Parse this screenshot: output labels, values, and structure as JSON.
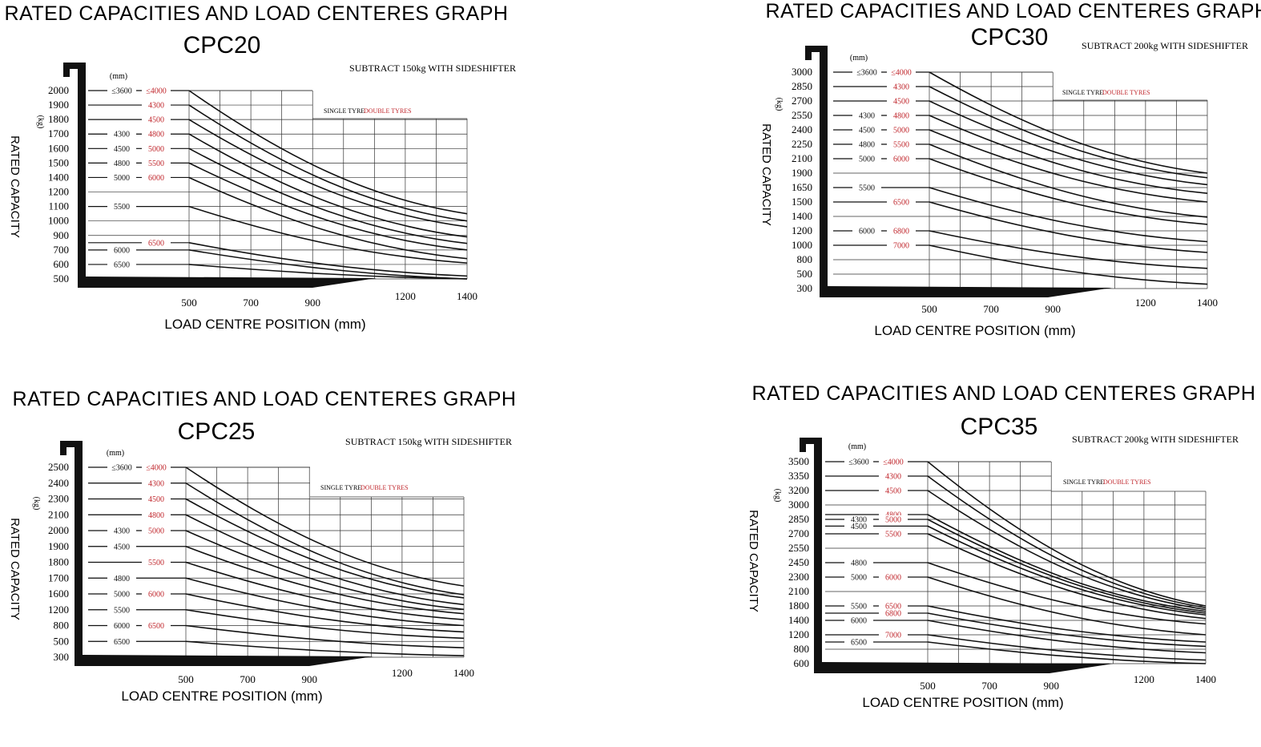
{
  "chart_data": [
    {
      "type": "line",
      "title": "RATED CAPACITIES AND LOAD CENTERES GRAPH",
      "model": "CPC20",
      "note": "SUBTRACT 150kg WITH SIDESHIFTER",
      "legend": {
        "single": "SINGLE TYRE",
        "double": "DOUBLE TYRES"
      },
      "xlabel": "LOAD CENTRE POSITION (mm)",
      "ylabel": "RATED CAPACITY",
      "yunit": "(kg)",
      "mast_unit": "(mm)",
      "xticks": [
        500,
        700,
        900,
        1200,
        1400
      ],
      "xlim": [
        500,
        1400
      ],
      "yticks": [
        2000,
        1900,
        1800,
        1700,
        1600,
        1500,
        1400,
        1200,
        1100,
        1000,
        900,
        700,
        600,
        500
      ],
      "series": [
        {
          "single": "≤3600",
          "double": "≤4000",
          "start": 2000,
          "end": 1050
        },
        {
          "single": "",
          "double": "4300",
          "start": 1900,
          "end": 1000
        },
        {
          "single": "",
          "double": "4500",
          "start": 1800,
          "end": 960
        },
        {
          "single": "4300",
          "double": "4800",
          "start": 1700,
          "end": 880
        },
        {
          "single": "4500",
          "double": "5000",
          "start": 1600,
          "end": 790
        },
        {
          "single": "4800",
          "double": "5500",
          "start": 1500,
          "end": 700
        },
        {
          "single": "5000",
          "double": "6000",
          "start": 1400,
          "end": 640
        },
        {
          "single": "5500",
          "double": "",
          "start": 1100,
          "end": 610
        },
        {
          "single": "",
          "double": "6500",
          "start": 800,
          "end": 520
        },
        {
          "single": "6000",
          "double": "",
          "start": 700,
          "end": 500
        },
        {
          "single": "6500",
          "double": "",
          "start": 600,
          "end": 500
        }
      ]
    },
    {
      "type": "line",
      "title": "RATED CAPACITIES AND LOAD CENTERES GRAPH",
      "model": "CPC30",
      "note": "SUBTRACT 200kg WITH SIDESHIFTER",
      "legend": {
        "single": "SINGLE TYRE",
        "double": "DOUBLE TYRES"
      },
      "xlabel": "LOAD CENTRE POSITION (mm)",
      "ylabel": "RATED CAPACITY",
      "yunit": "(kg)",
      "mast_unit": "(mm)",
      "xticks": [
        500,
        700,
        900,
        1200,
        1400
      ],
      "xlim": [
        500,
        1400
      ],
      "yticks": [
        3000,
        2850,
        2700,
        2550,
        2400,
        2250,
        2100,
        1900,
        1650,
        1500,
        1400,
        1200,
        1000,
        800,
        500,
        300
      ],
      "series": [
        {
          "single": "≤3600",
          "double": "≤4000",
          "start": 3000,
          "end": 1900
        },
        {
          "single": "",
          "double": "4300",
          "start": 2850,
          "end": 1820
        },
        {
          "single": "",
          "double": "4500",
          "start": 2700,
          "end": 1700
        },
        {
          "single": "4300",
          "double": "4800",
          "start": 2550,
          "end": 1590
        },
        {
          "single": "4500",
          "double": "5000",
          "start": 2400,
          "end": 1500
        },
        {
          "single": "4800",
          "double": "5500",
          "start": 2250,
          "end": 1390
        },
        {
          "single": "5000",
          "double": "6000",
          "start": 2100,
          "end": 1290
        },
        {
          "single": "5500",
          "double": "",
          "start": 1650,
          "end": 1050
        },
        {
          "single": "",
          "double": "6500",
          "start": 1500,
          "end": 900
        },
        {
          "single": "6000",
          "double": "6800",
          "start": 1200,
          "end": 620
        },
        {
          "single": "",
          "double": "7000",
          "start": 1000,
          "end": 360
        }
      ]
    },
    {
      "type": "line",
      "title": "RATED CAPACITIES AND LOAD CENTERES GRAPH",
      "model": "CPC25",
      "note": "SUBTRACT 150kg WITH SIDESHIFTER",
      "legend": {
        "single": "SINGLE TYRE",
        "double": "DOUBLE TYRES"
      },
      "xlabel": "LOAD CENTRE POSITION (mm)",
      "ylabel": "RATED CAPACITY",
      "yunit": "(kg)",
      "mast_unit": "(mm)",
      "xticks": [
        500,
        700,
        900,
        1200,
        1400
      ],
      "xlim": [
        500,
        1400
      ],
      "yticks": [
        2500,
        2400,
        2300,
        2100,
        2000,
        1900,
        1800,
        1700,
        1600,
        1200,
        800,
        500,
        300
      ],
      "series": [
        {
          "single": "≤3600",
          "double": "≤4000",
          "start": 2500,
          "end": 1650
        },
        {
          "single": "",
          "double": "4300",
          "start": 2400,
          "end": 1580
        },
        {
          "single": "",
          "double": "4500",
          "start": 2300,
          "end": 1500
        },
        {
          "single": "",
          "double": "4800",
          "start": 2100,
          "end": 1330
        },
        {
          "single": "4300",
          "double": "5000",
          "start": 2000,
          "end": 1210
        },
        {
          "single": "4500",
          "double": "",
          "start": 1900,
          "end": 1100
        },
        {
          "single": "",
          "double": "5500",
          "start": 1800,
          "end": 950
        },
        {
          "single": "4800",
          "double": "",
          "start": 1700,
          "end": 800
        },
        {
          "single": "5000",
          "double": "6000",
          "start": 1600,
          "end": 680
        },
        {
          "single": "5500",
          "double": "",
          "start": 1200,
          "end": 560
        },
        {
          "single": "6000",
          "double": "6500",
          "start": 800,
          "end": 420
        },
        {
          "single": "6500",
          "double": "",
          "start": 500,
          "end": 320
        }
      ]
    },
    {
      "type": "line",
      "title": "RATED CAPACITIES AND LOAD CENTERES GRAPH",
      "model": "CPC35",
      "note": "SUBTRACT 200kg WITH SIDESHIFTER",
      "legend": {
        "single": "SINGLE TYRE",
        "double": "DOUBLE TYRES"
      },
      "xlabel": "LOAD CENTRE POSITION (mm)",
      "ylabel": "RATED CAPACITY",
      "yunit": "(kg)",
      "mast_unit": "(mm)",
      "xticks": [
        500,
        700,
        900,
        1200,
        1400
      ],
      "xlim": [
        500,
        1400
      ],
      "yticks": [
        3500,
        3350,
        3200,
        3000,
        2850,
        2700,
        2550,
        2450,
        2300,
        2100,
        1800,
        1400,
        1200,
        800,
        600
      ],
      "series": [
        {
          "single": "≤3600",
          "double": "≤4000",
          "start": 3500,
          "end": 1800
        },
        {
          "single": "",
          "double": "4300",
          "start": 3350,
          "end": 1750
        },
        {
          "single": "",
          "double": "4500",
          "start": 3200,
          "end": 1700
        },
        {
          "single": "",
          "double": "4800",
          "start": 2900,
          "end": 1650
        },
        {
          "single": "4300",
          "double": "5000",
          "start": 2850,
          "end": 1600
        },
        {
          "single": "4500",
          "double": "",
          "start": 2780,
          "end": 1550
        },
        {
          "single": "",
          "double": "5500",
          "start": 2700,
          "end": 1450
        },
        {
          "single": "4800",
          "double": "",
          "start": 2450,
          "end": 1350
        },
        {
          "single": "5000",
          "double": "6000",
          "start": 2300,
          "end": 1200
        },
        {
          "single": "5500",
          "double": "6500",
          "start": 1800,
          "end": 1000
        },
        {
          "single": "",
          "double": "6800",
          "start": 1600,
          "end": 880
        },
        {
          "single": "6000",
          "double": "",
          "start": 1400,
          "end": 750
        },
        {
          "single": "",
          "double": "7000",
          "start": 1200,
          "end": 650
        },
        {
          "single": "6500",
          "double": "",
          "start": 1000,
          "end": 600
        }
      ]
    }
  ]
}
